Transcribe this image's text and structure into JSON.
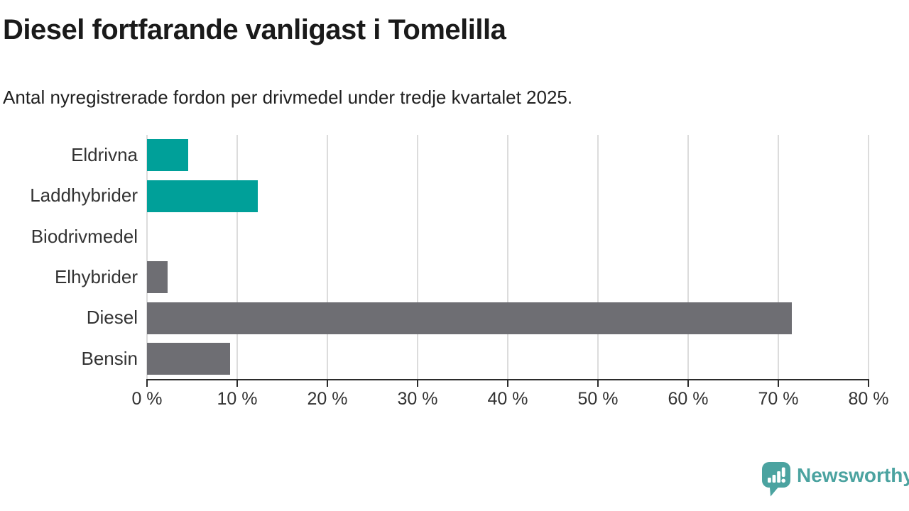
{
  "header": {
    "title": "Diesel fortfarande vanligast i Tomelilla",
    "subtitle": "Antal nyregistrerade fordon per drivmedel under tredje kvartalet 2025."
  },
  "chart_data": {
    "type": "bar",
    "orientation": "horizontal",
    "title": "Diesel fortfarande vanligast i Tomelilla",
    "subtitle": "Antal nyregistrerade fordon per drivmedel under tredje kvartalet 2025.",
    "categories": [
      "Eldrivna",
      "Laddhybrider",
      "Biodrivmedel",
      "Elhybrider",
      "Diesel",
      "Bensin"
    ],
    "values": [
      4.6,
      12.3,
      0,
      2.3,
      71.5,
      9.2
    ],
    "bar_colors": [
      "#00a099",
      "#00a099",
      "#6e6e73",
      "#6e6e73",
      "#6e6e73",
      "#6e6e73"
    ],
    "xlabel": "",
    "ylabel": "",
    "xlim": [
      0,
      80
    ],
    "x_tick_values": [
      0,
      10,
      20,
      30,
      40,
      50,
      60,
      70,
      80
    ],
    "x_ticks": [
      "0 %",
      "10 %",
      "20 %",
      "30 %",
      "40 %",
      "50 %",
      "60 %",
      "70 %",
      "80 %"
    ],
    "grid": true,
    "legend": false
  },
  "colors": {
    "accent_teal": "#00a099",
    "bar_gray": "#6e6e73",
    "gridline": "#dcdcdc",
    "axis": "#2b2b2b",
    "text": "#333333",
    "brand": "#4ba3a0"
  },
  "footer": {
    "brand": "Newsworthy"
  }
}
